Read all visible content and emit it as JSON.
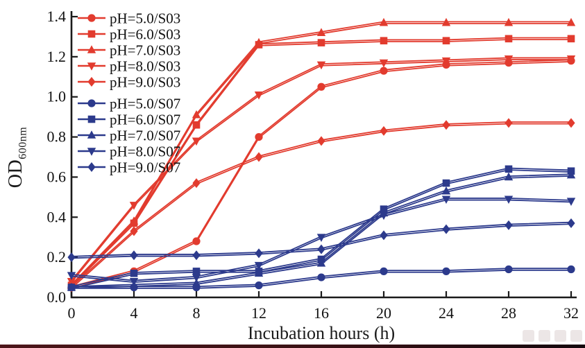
{
  "chart_data": {
    "type": "line",
    "title": "",
    "xlabel": "Incubation hours (h)",
    "ylabel": "OD",
    "ylabel_subscript": "600nm",
    "xlim": [
      0,
      32
    ],
    "ylim": [
      0,
      1.4
    ],
    "x_ticks": [
      0,
      4,
      8,
      12,
      16,
      20,
      24,
      28,
      32
    ],
    "y_ticks": [
      "0.0",
      "0.2",
      "0.4",
      "0.6",
      "0.8",
      "1.0",
      "1.2",
      "1.4"
    ],
    "grid": false,
    "legend_position": "top-left-inside",
    "axis_color": "#1a1a1a",
    "text_color": "#111111",
    "colors": {
      "S03": "#e23b2e",
      "S07": "#2c3a8c"
    },
    "x": [
      0,
      4,
      8,
      12,
      16,
      20,
      24,
      28,
      32
    ],
    "series": [
      {
        "name": "pH=5.0/S03",
        "group": "S03",
        "marker": "circle",
        "values": [
          0.05,
          0.13,
          0.28,
          0.8,
          1.05,
          1.13,
          1.16,
          1.17,
          1.18
        ]
      },
      {
        "name": "pH=6.0/S03",
        "group": "S03",
        "marker": "square",
        "values": [
          0.06,
          0.37,
          0.86,
          1.26,
          1.27,
          1.28,
          1.28,
          1.29,
          1.29
        ]
      },
      {
        "name": "pH=7.0/S03",
        "group": "S03",
        "marker": "triangle-up",
        "values": [
          0.06,
          0.38,
          0.91,
          1.27,
          1.32,
          1.37,
          1.37,
          1.37,
          1.37
        ]
      },
      {
        "name": "pH=8.0/S03",
        "group": "S03",
        "marker": "triangle-down",
        "values": [
          0.08,
          0.46,
          0.78,
          1.01,
          1.16,
          1.17,
          1.18,
          1.19,
          1.19
        ]
      },
      {
        "name": "pH=9.0/S03",
        "group": "S03",
        "marker": "diamond",
        "values": [
          0.05,
          0.33,
          0.57,
          0.7,
          0.78,
          0.83,
          0.86,
          0.87,
          0.87
        ]
      },
      {
        "name": "pH=5.0/S07",
        "group": "S07",
        "marker": "circle",
        "values": [
          0.05,
          0.05,
          0.05,
          0.06,
          0.1,
          0.13,
          0.13,
          0.14,
          0.14
        ]
      },
      {
        "name": "pH=6.0/S07",
        "group": "S07",
        "marker": "square",
        "values": [
          0.05,
          0.12,
          0.13,
          0.13,
          0.19,
          0.44,
          0.57,
          0.64,
          0.63
        ]
      },
      {
        "name": "pH=7.0/S07",
        "group": "S07",
        "marker": "triangle-up",
        "values": [
          0.05,
          0.06,
          0.07,
          0.12,
          0.17,
          0.42,
          0.53,
          0.6,
          0.61
        ]
      },
      {
        "name": "pH=8.0/S07",
        "group": "S07",
        "marker": "triangle-down",
        "values": [
          0.11,
          0.08,
          0.1,
          0.16,
          0.3,
          0.41,
          0.49,
          0.49,
          0.48
        ]
      },
      {
        "name": "pH=9.0/S07",
        "group": "S07",
        "marker": "diamond",
        "values": [
          0.2,
          0.21,
          0.21,
          0.22,
          0.24,
          0.31,
          0.34,
          0.36,
          0.37
        ]
      }
    ]
  }
}
